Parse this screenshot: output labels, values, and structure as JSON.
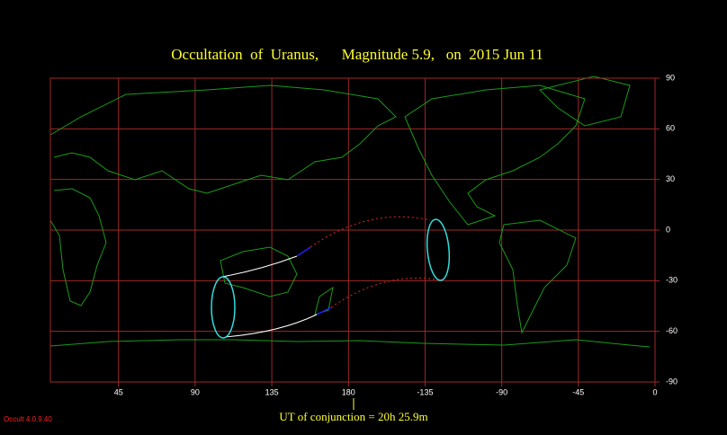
{
  "chart_data": {
    "type": "map",
    "title": "Occultation  of  Uranus,      Magnitude 5.9,   on  2015 Jun 11",
    "footer": "UT of conjunction = 20h 25.9m",
    "version": "Occult 4.0.9.40",
    "xlim": [
      5,
      360
    ],
    "ylim": [
      -90,
      90
    ],
    "xticks": [
      45,
      90,
      135,
      180,
      {
        "value": 225,
        "label": "-135"
      },
      {
        "value": 270,
        "label": "-90"
      },
      {
        "value": 315,
        "label": "-45"
      },
      {
        "value": 360,
        "label": "0"
      }
    ],
    "yticks": [
      90,
      60,
      30,
      0,
      -30,
      -60,
      -90
    ],
    "grid": true
  }
}
